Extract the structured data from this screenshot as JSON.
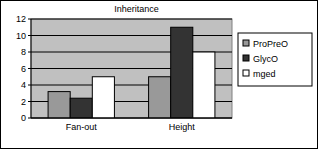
{
  "chart_data": {
    "type": "bar",
    "title": "Inheritance",
    "categories": [
      "Fan-out",
      "Height"
    ],
    "series": [
      {
        "name": "ProPreO",
        "color": "#999999",
        "values": [
          3.2,
          5
        ]
      },
      {
        "name": "GlycO",
        "color": "#333333",
        "values": [
          2.4,
          11
        ]
      },
      {
        "name": "mged",
        "color": "#ffffff",
        "values": [
          5,
          8
        ]
      }
    ],
    "ylim": [
      0,
      12
    ],
    "yticks": [
      0,
      2,
      4,
      6,
      8,
      10,
      12
    ],
    "grid": true,
    "legend": "right"
  }
}
